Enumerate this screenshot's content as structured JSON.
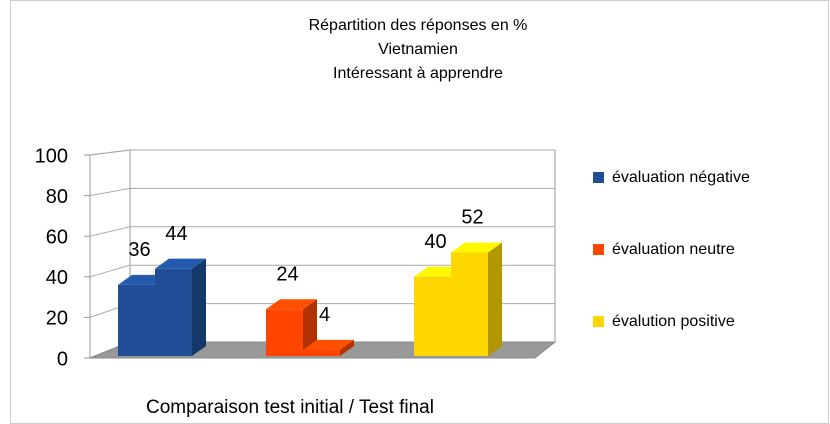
{
  "chart_data": {
    "type": "bar3d",
    "title": [
      "Répartition des réponses en %",
      "Vietnamien",
      "Intéressant à apprendre"
    ],
    "x_label": "Comparaison test initial / Test final",
    "categories": [
      null,
      null
    ],
    "series": [
      {
        "name": "évaluation négative",
        "color": "#1f4e96",
        "values": [
          36,
          44
        ]
      },
      {
        "name": "évaluation neutre",
        "color": "#ff4500",
        "values": [
          24,
          4
        ]
      },
      {
        "name": "évalution positive",
        "color": "#ffd700",
        "values": [
          40,
          52
        ]
      }
    ],
    "ylim": [
      0,
      100
    ],
    "yticks": [
      0,
      20,
      40,
      60,
      80,
      100
    ],
    "grid": true,
    "legend": "right"
  }
}
